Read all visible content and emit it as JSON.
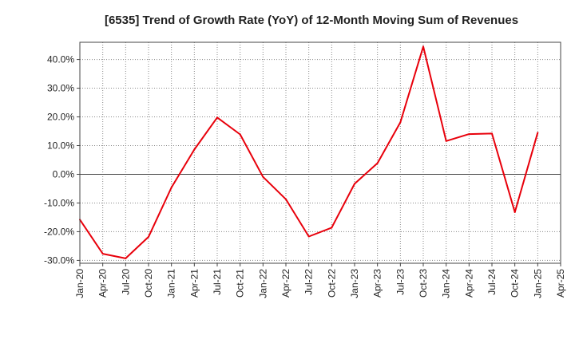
{
  "chart_data": {
    "type": "line",
    "title": "[6535]  Trend of Growth Rate (YoY) of 12-Month Moving Sum of Revenues",
    "xlabel": "",
    "ylabel": "",
    "ylim": [
      -31,
      46
    ],
    "grid": true,
    "legend": "none",
    "x_tick_labels": [
      "Jan-20",
      "Apr-20",
      "Jul-20",
      "Oct-20",
      "Jan-21",
      "Apr-21",
      "Jul-21",
      "Oct-21",
      "Jan-22",
      "Apr-22",
      "Jul-22",
      "Oct-22",
      "Jan-23",
      "Apr-23",
      "Jul-23",
      "Oct-23",
      "Jan-24",
      "Apr-24",
      "Jul-24",
      "Oct-24",
      "Jan-25",
      "Apr-25"
    ],
    "y_ticks": [
      -30,
      -20,
      -10,
      0,
      10,
      20,
      30,
      40
    ],
    "y_tick_labels": [
      "-30.0%",
      "-20.0%",
      "-10.0%",
      "0.0%",
      "10.0%",
      "20.0%",
      "30.0%",
      "40.0%"
    ],
    "series": [
      {
        "color": "#e8000b",
        "x": [
          "Jan-20",
          "Apr-20",
          "Jul-20",
          "Oct-20",
          "Jan-21",
          "Apr-21",
          "Jul-21",
          "Oct-21",
          "Jan-22",
          "Apr-22",
          "Jul-22",
          "Oct-22",
          "Jan-23",
          "Apr-23",
          "Jul-23",
          "Oct-23",
          "Jan-24",
          "Apr-24",
          "Jul-24",
          "Oct-24",
          "Jan-25"
        ],
        "values": [
          -15.8,
          -27.7,
          -29.3,
          -21.8,
          -4.6,
          8.6,
          19.8,
          13.9,
          -0.9,
          -8.7,
          -21.7,
          -18.6,
          -3.3,
          3.9,
          18.1,
          44.5,
          11.6,
          14.0,
          14.2,
          -13.2,
          14.5
        ]
      }
    ]
  }
}
